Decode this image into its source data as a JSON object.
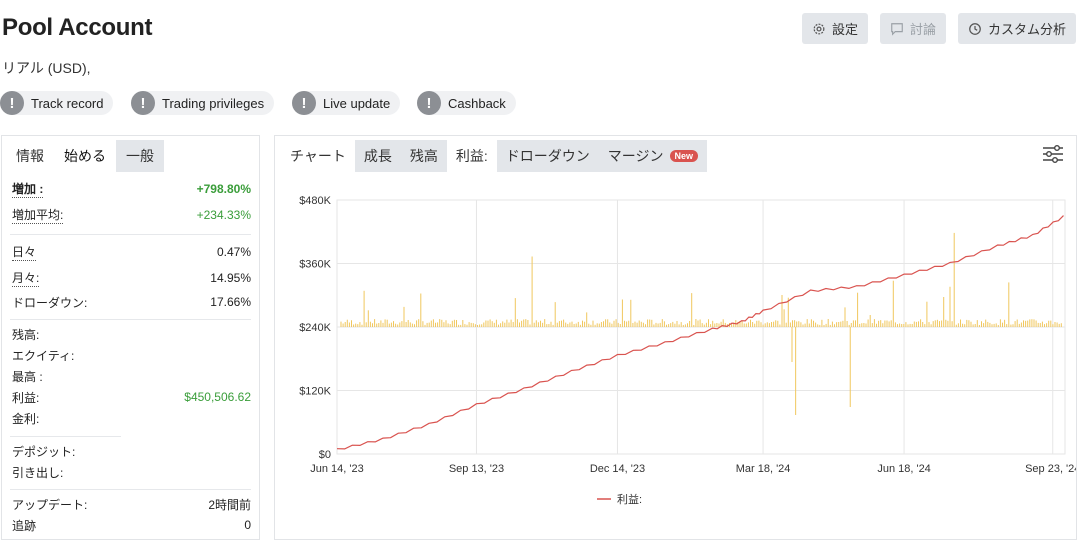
{
  "header": {
    "title": "Pool Account",
    "subtitle": "リアル (USD),",
    "buttons": {
      "settings": "設定",
      "discuss": "討論",
      "custom": "カスタム分析"
    }
  },
  "badges": [
    "Track record",
    "Trading privileges",
    "Live update",
    "Cashback"
  ],
  "left_tabs": [
    "情報",
    "始める",
    "一般"
  ],
  "stats": {
    "gain_label": "増加 :",
    "gain_value": "+798.80%",
    "abs_gain_label": "増加平均:",
    "abs_gain_value": "+234.33%",
    "daily_label": "日々",
    "daily_value": "0.47%",
    "monthly_label": "月々:",
    "monthly_value": "14.95%",
    "drawdown_label": "ドローダウン:",
    "drawdown_value": "17.66%",
    "balance_label": "残高:",
    "equity_label": "エクイティ:",
    "highest_label": "最高 :",
    "profit_label": "利益:",
    "profit_value": "$450,506.62",
    "interest_label": "金利:",
    "deposits_label": "デポジット:",
    "withdrawals_label": "引き出し:",
    "updated_label": "アップデート:",
    "updated_value": "2時間前",
    "tracking_label": "追跡",
    "tracking_value": "0"
  },
  "right_tabs": [
    "チャート",
    "成長",
    "残高",
    "利益:",
    "ドローダウン",
    "マージン"
  ],
  "new_tag": "New",
  "colors": {
    "profit_line": "#d9534f",
    "bars": "#f0c75e",
    "green": "#3a9d3a",
    "badge_gray": "#8c8f94"
  },
  "chart_data": {
    "type": "line",
    "y_ticks": [
      "$0",
      "$120K",
      "$240K",
      "$360K",
      "$480K"
    ],
    "ylim": [
      0,
      480000
    ],
    "x_ticks": [
      "Jun 14, '23",
      "Sep 13, '23",
      "Dec 14, '23",
      "Mar 18, '24",
      "Jun 18, '24",
      "Sep 23, '24"
    ],
    "grid": true,
    "legend": "bottom",
    "series": [
      {
        "name": "利益:",
        "x": [
          "Jun 14, '23",
          "Jul 14, '23",
          "Aug 13, '23",
          "Sep 13, '23",
          "Oct 14, '23",
          "Nov 14, '23",
          "Dec 14, '23",
          "Jan 14, '24",
          "Feb 14, '24",
          "Mar 4, '24",
          "Mar 18, '24",
          "Apr 18, '24",
          "May 18, '24",
          "Jun 18, '24",
          "Jul 18, '24",
          "Aug 18, '24",
          "Sep 10, '24",
          "Sep 30, '24"
        ],
        "values": [
          10000,
          30000,
          58000,
          95000,
          125000,
          158000,
          188000,
          212000,
          238000,
          252000,
          272000,
          310000,
          318000,
          340000,
          362000,
          395000,
          415000,
          450506
        ]
      }
    ]
  }
}
